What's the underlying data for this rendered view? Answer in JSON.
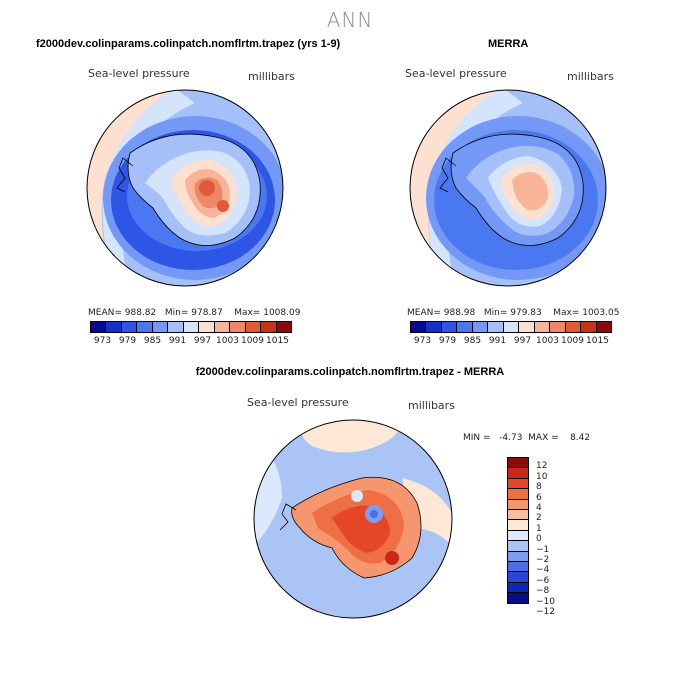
{
  "title": "ANN",
  "colors": {
    "abs_palette": [
      "#0a0a8c",
      "#1530c8",
      "#2d55e6",
      "#4a78f0",
      "#7398f5",
      "#a5c0f8",
      "#d4e4fb",
      "#fde0cf",
      "#f8b499",
      "#ee8864",
      "#e05a3a",
      "#c83218",
      "#8c0a0a"
    ],
    "diff_palette": [
      "#8c0a0a",
      "#c82814",
      "#e64628",
      "#f06e46",
      "#f5966e",
      "#f8bea0",
      "#fde8d8",
      "#dce8fb",
      "#aac4f5",
      "#7e9cf0",
      "#4e6ee6",
      "#2a46d2",
      "#1026b4",
      "#0a0a8c"
    ]
  },
  "panels": {
    "left": {
      "title": "f2000dev.colinparams.colinpatch.nomflrtm.trapez (yrs 1-9)",
      "field": "Sea-level pressure",
      "units": "millibars",
      "stats": {
        "mean_label": "MEAN=",
        "mean": "988.82",
        "min_label": "Min=",
        "min": "978.87",
        "max_label": "Max=",
        "max": "1008.09"
      },
      "ticks": [
        "973",
        "979",
        "985",
        "991",
        "997",
        "1003",
        "1009",
        "1015"
      ]
    },
    "right": {
      "title": "MERRA",
      "field": "Sea-level pressure",
      "units": "millibars",
      "stats": {
        "mean_label": "MEAN=",
        "mean": "988.98",
        "min_label": "Min=",
        "min": "979.83",
        "max_label": "Max=",
        "max": "1003.05"
      },
      "ticks": [
        "973",
        "979",
        "985",
        "991",
        "997",
        "1003",
        "1009",
        "1015"
      ]
    },
    "diff": {
      "title": "f2000dev.colinparams.colinpatch.nomflrtm.trapez - MERRA",
      "field": "Sea-level pressure",
      "units": "millibars",
      "minmax_text": "MIN =   -4.73  MAX =    8.42",
      "ticks": [
        "12",
        "10",
        "8",
        "6",
        "4",
        "2",
        "1",
        "0",
        "−1",
        "−2",
        "−4",
        "−6",
        "−8",
        "−10",
        "−12"
      ]
    }
  }
}
